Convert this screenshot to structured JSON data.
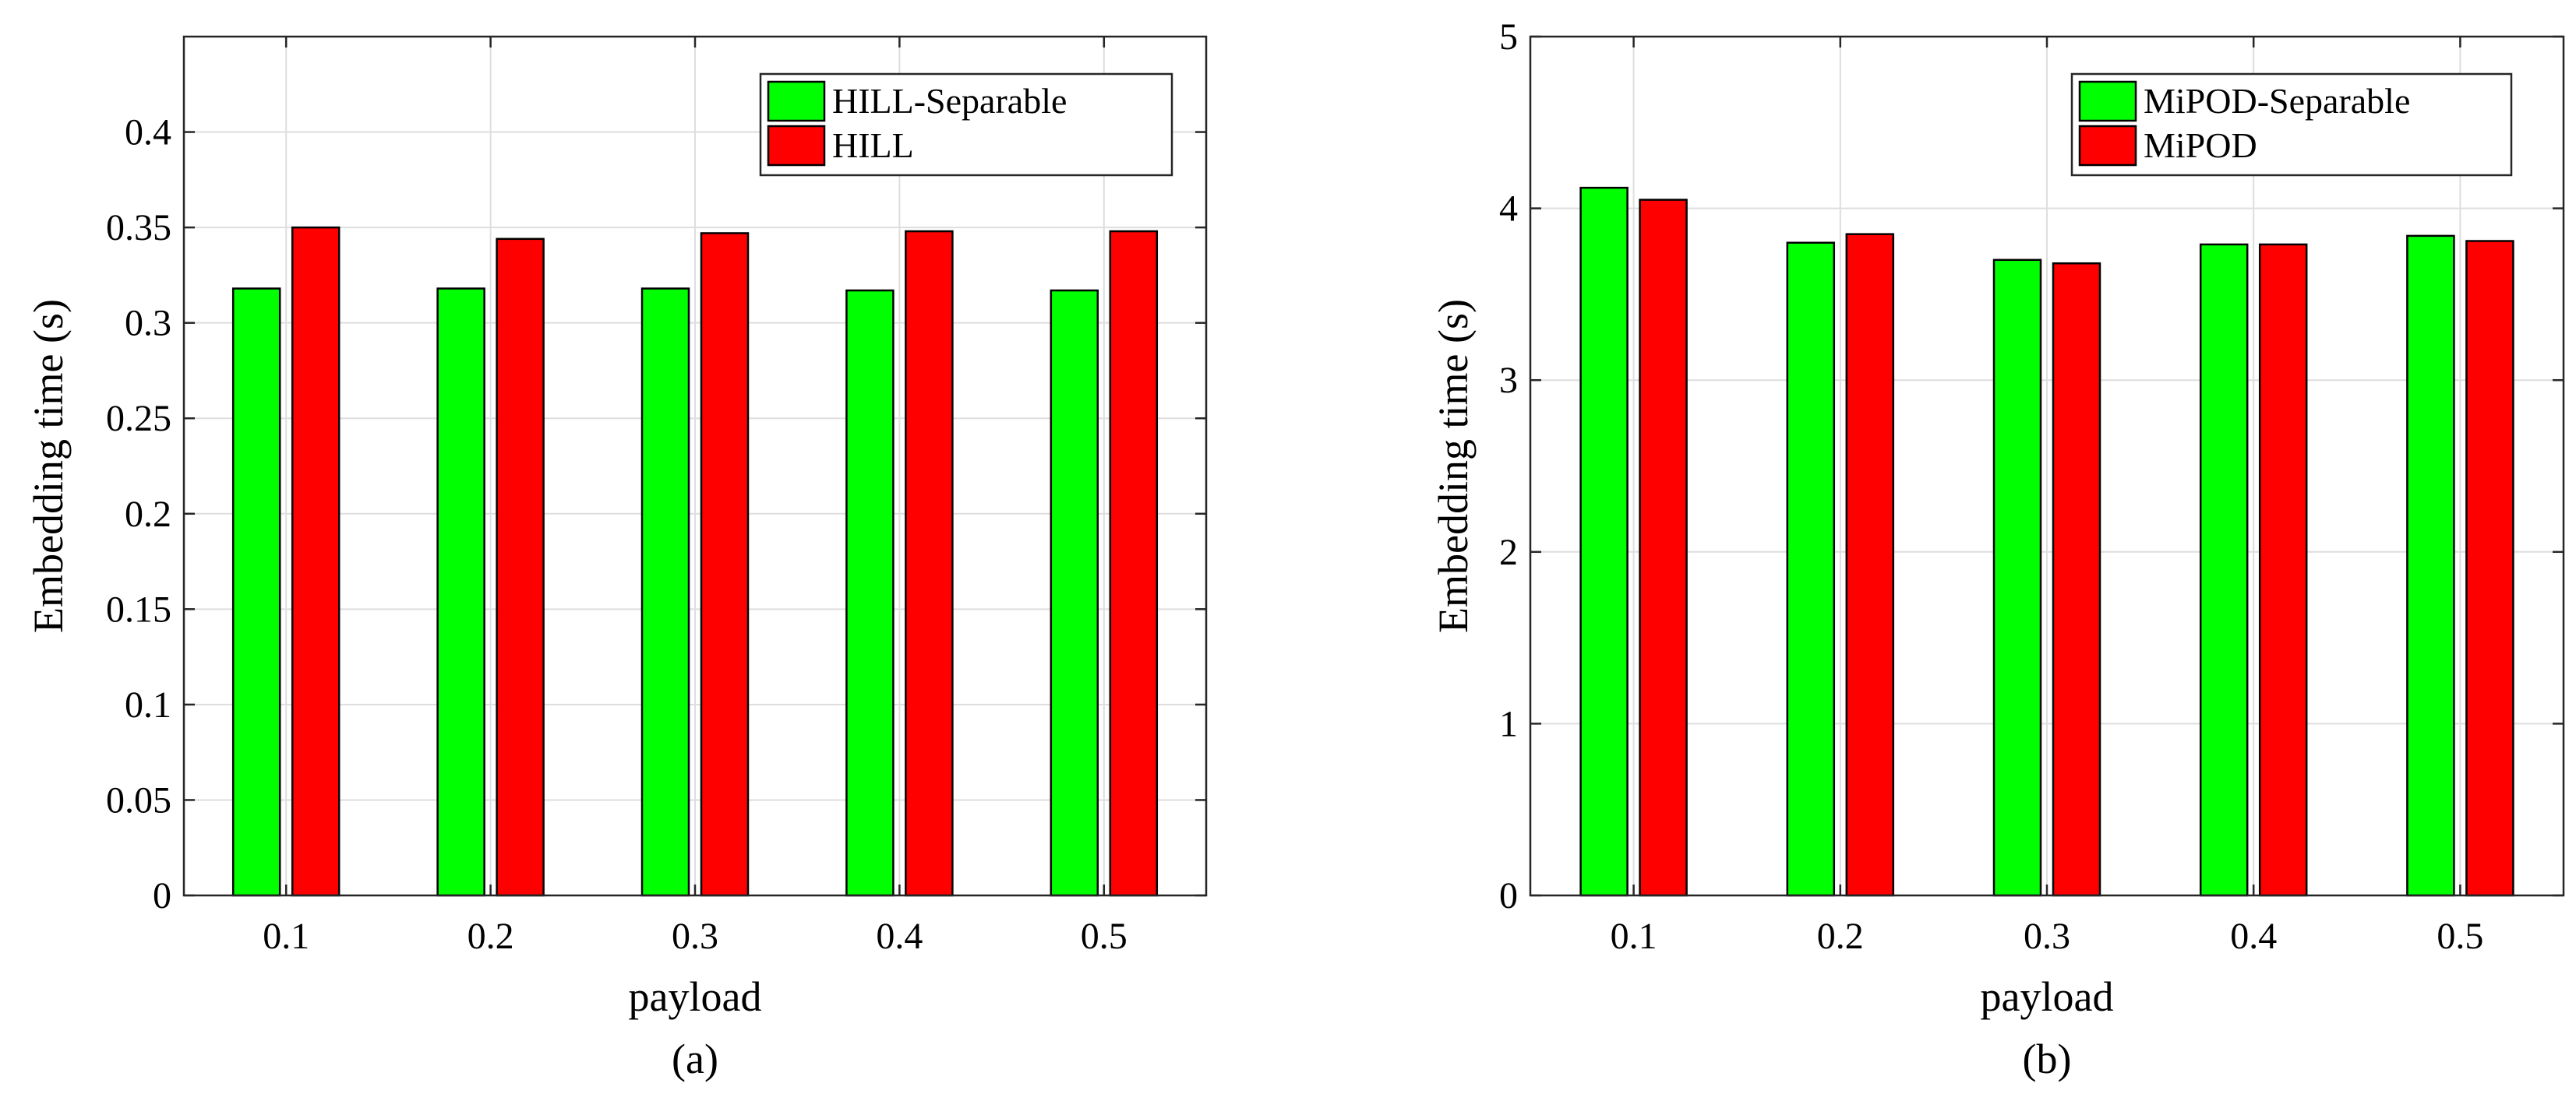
{
  "chart_data": [
    {
      "type": "bar",
      "panel_label": "(a)",
      "categories": [
        "0.1",
        "0.2",
        "0.3",
        "0.4",
        "0.5"
      ],
      "series": [
        {
          "name": "HILL-Separable",
          "color": "#00ff00",
          "values": [
            0.318,
            0.318,
            0.318,
            0.317,
            0.317
          ]
        },
        {
          "name": "HILL",
          "color": "#ff0000",
          "values": [
            0.35,
            0.344,
            0.347,
            0.348,
            0.348
          ]
        }
      ],
      "xlabel": "payload",
      "ylabel": "Embedding time (s)",
      "ylim": [
        0,
        0.45
      ],
      "yticks": [
        0,
        0.05,
        0.1,
        0.15,
        0.2,
        0.25,
        0.3,
        0.35,
        0.4
      ],
      "ytick_labels": [
        "0",
        "0.05",
        "0.1",
        "0.15",
        "0.2",
        "0.25",
        "0.3",
        "0.35",
        "0.4"
      ],
      "grid": true,
      "legend_position": "top-right"
    },
    {
      "type": "bar",
      "panel_label": "(b)",
      "categories": [
        "0.1",
        "0.2",
        "0.3",
        "0.4",
        "0.5"
      ],
      "series": [
        {
          "name": "MiPOD-Separable",
          "color": "#00ff00",
          "values": [
            4.12,
            3.8,
            3.7,
            3.79,
            3.84
          ]
        },
        {
          "name": "MiPOD",
          "color": "#ff0000",
          "values": [
            4.05,
            3.85,
            3.68,
            3.79,
            3.81
          ]
        }
      ],
      "xlabel": "payload",
      "ylabel": "Embedding time (s)",
      "ylim": [
        0,
        5
      ],
      "yticks": [
        0,
        1,
        2,
        3,
        4,
        5
      ],
      "ytick_labels": [
        "0",
        "1",
        "2",
        "3",
        "4",
        "5"
      ],
      "grid": true,
      "legend_position": "top-right"
    }
  ]
}
